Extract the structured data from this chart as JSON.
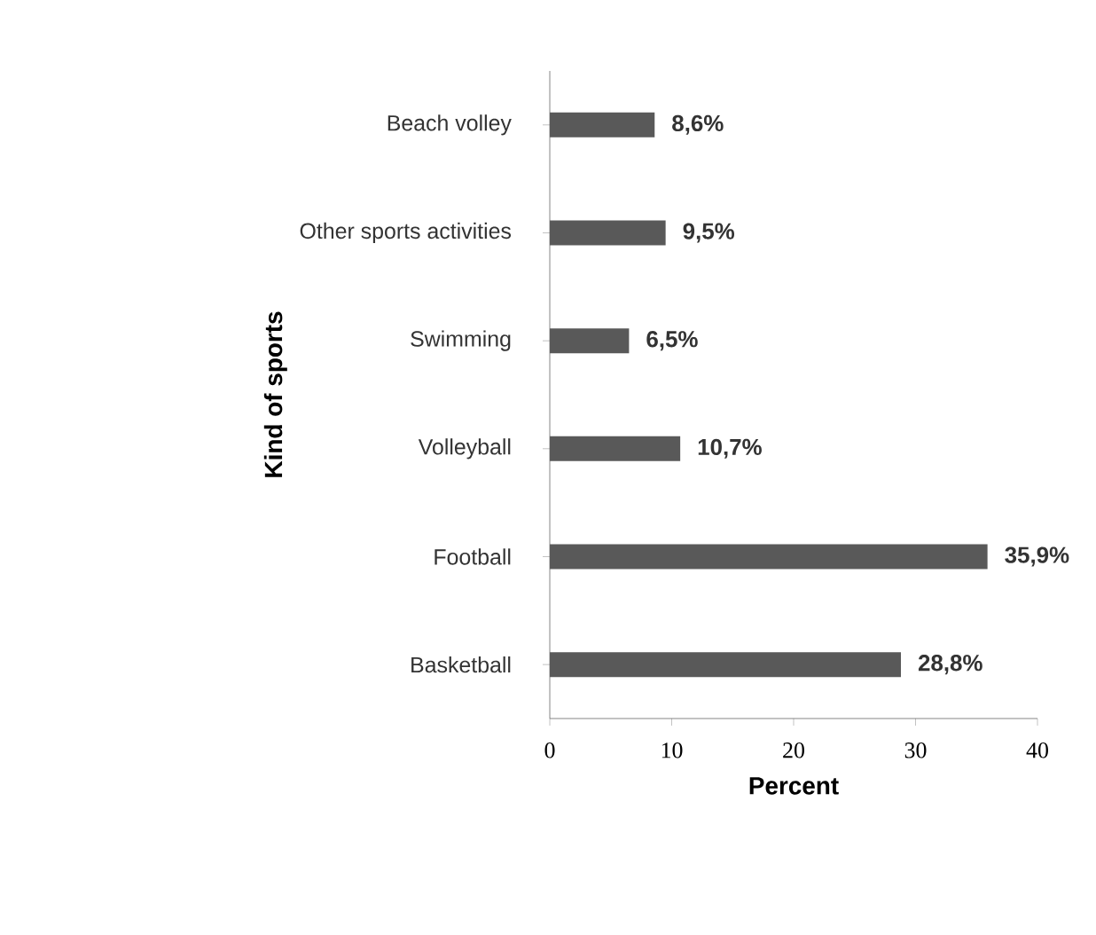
{
  "chart_data": {
    "type": "bar",
    "orientation": "horizontal",
    "categories": [
      "Beach volley",
      "Other sports activities",
      "Swimming",
      "Volleyball",
      "Football",
      "Basketball"
    ],
    "values": [
      8.6,
      9.5,
      6.5,
      10.7,
      35.9,
      28.8
    ],
    "value_labels": [
      "8,6%",
      "9,5%",
      "6,5%",
      "10,7%",
      "35,9%",
      "28,8%"
    ],
    "color": "#595959",
    "xlim": [
      0,
      40
    ],
    "xticks": [
      0,
      10,
      20,
      30,
      40
    ],
    "xlabel": "Percent",
    "ylabel": "Kind of sports"
  }
}
